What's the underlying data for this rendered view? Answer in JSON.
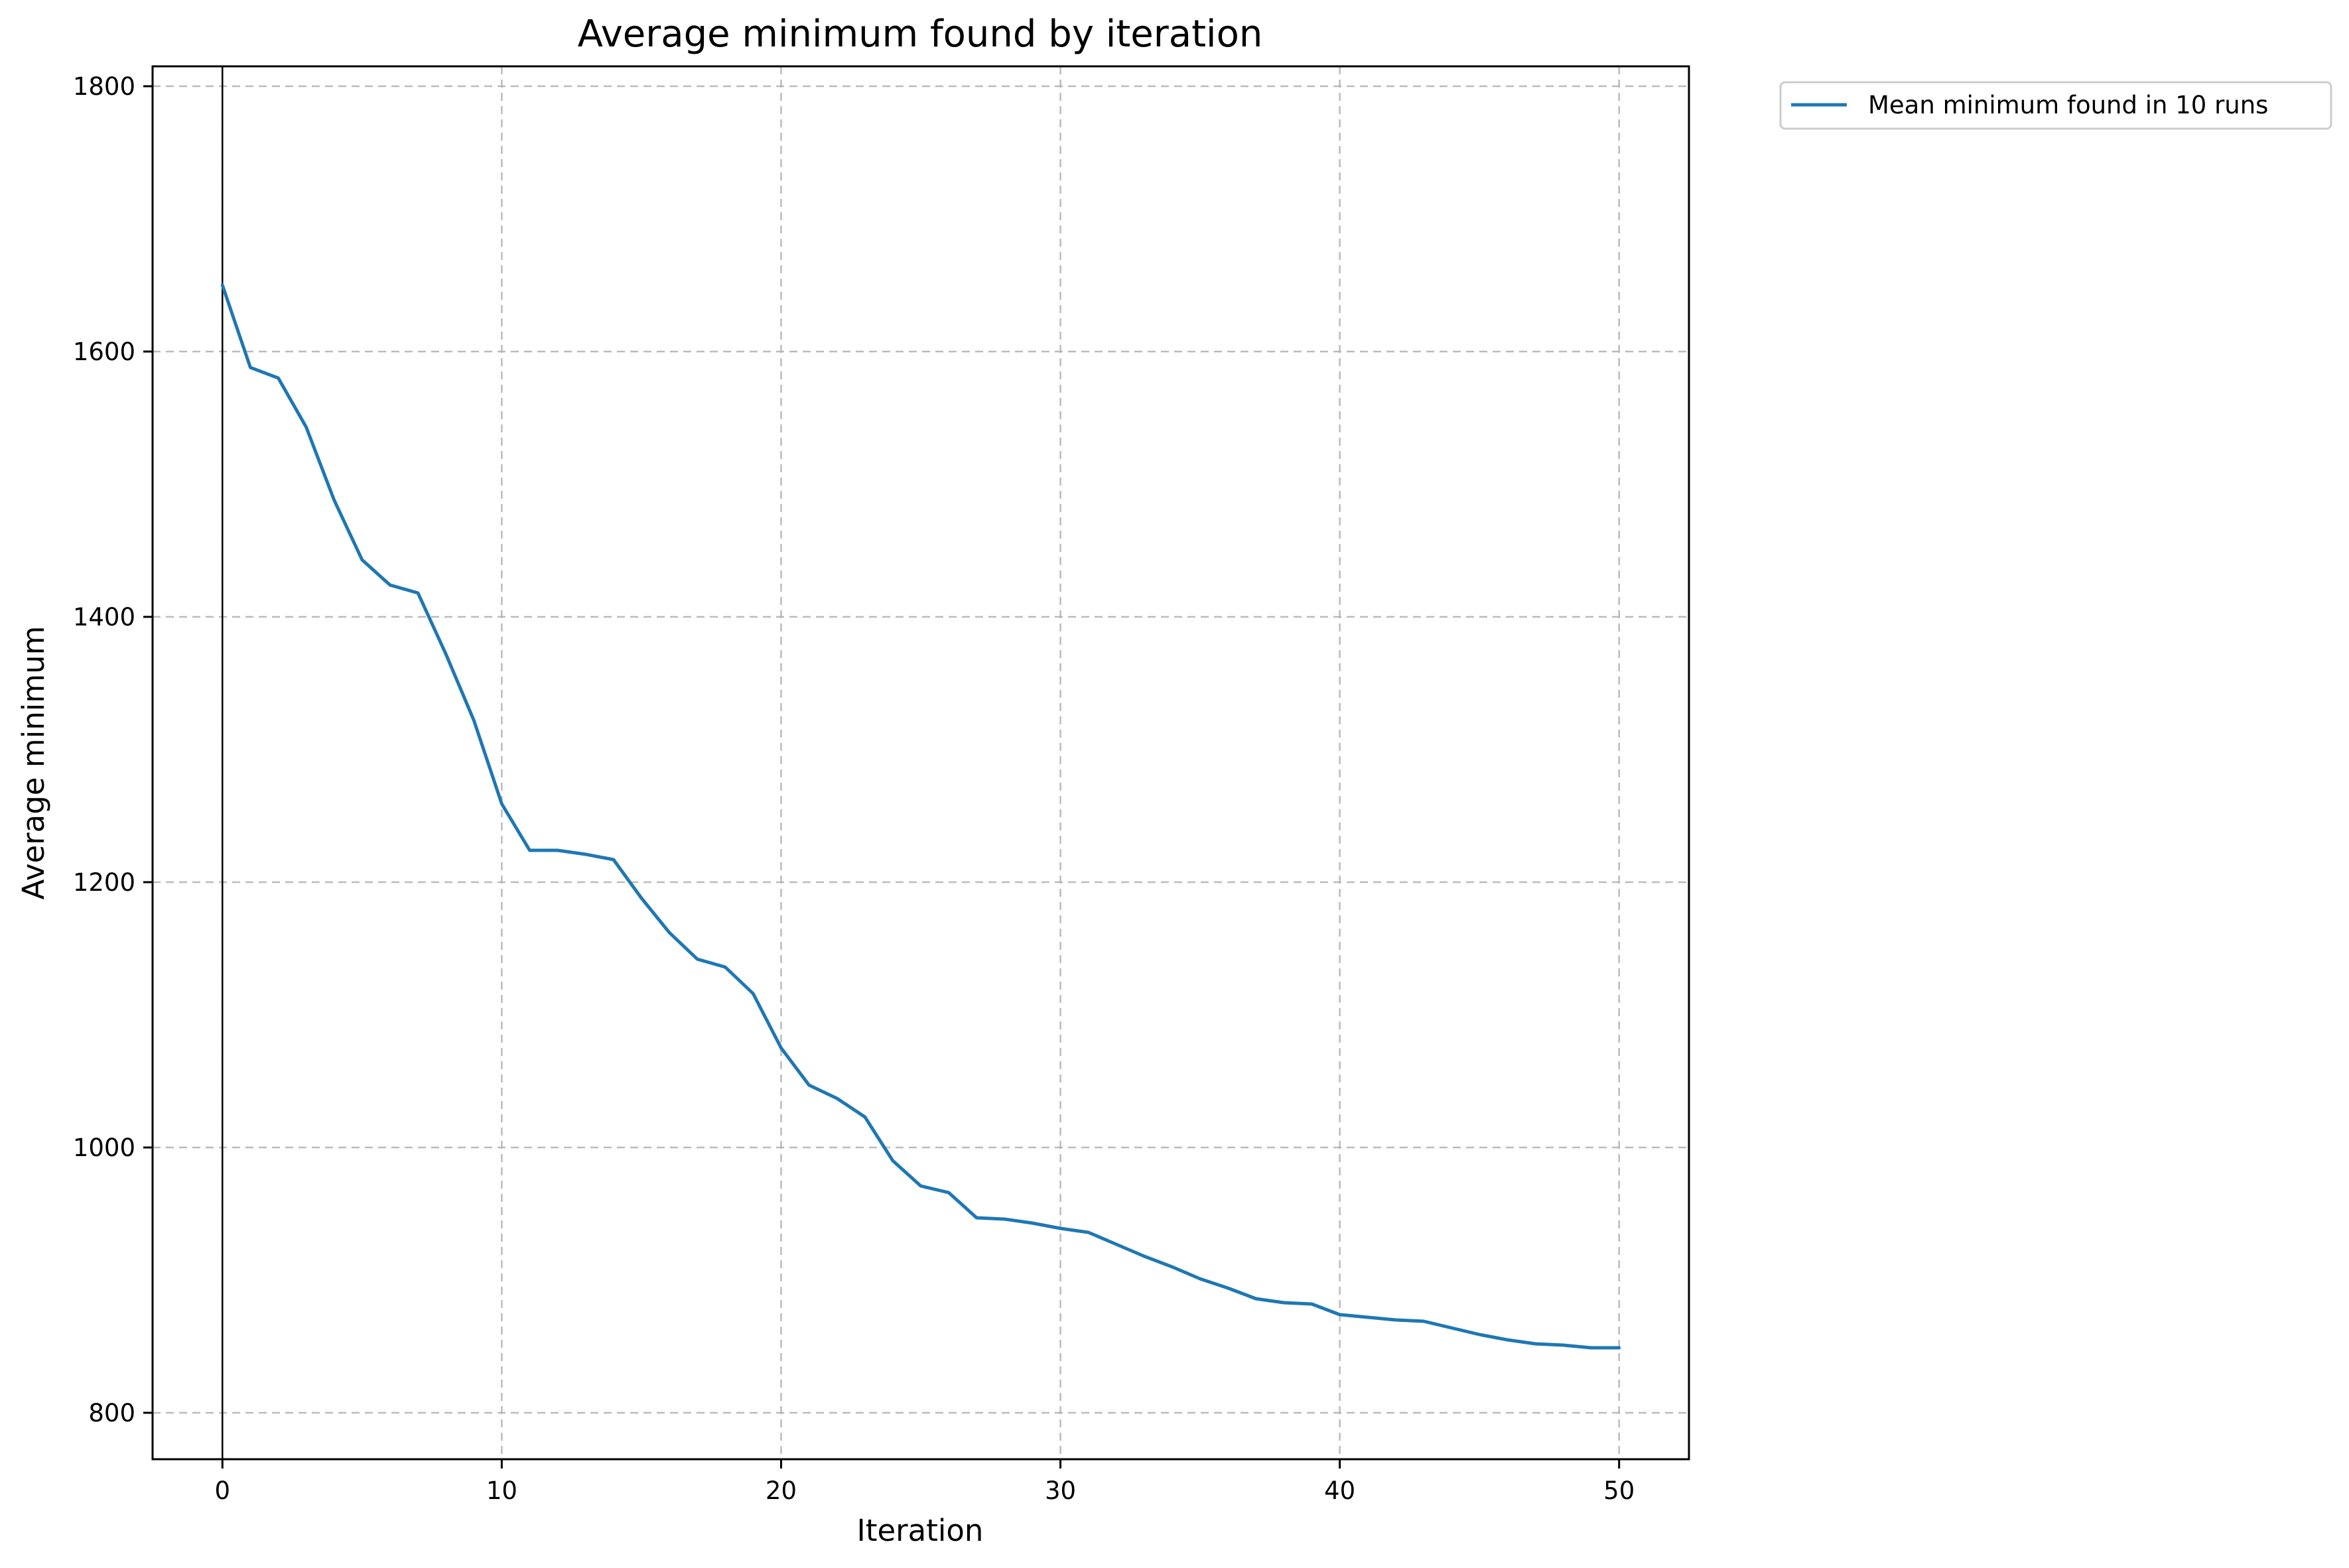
{
  "chart_data": {
    "type": "line",
    "title": "Average minimum found by iteration",
    "xlabel": "Iteration",
    "ylabel": "Average minimum",
    "xlim": [
      -2.5,
      52.5
    ],
    "ylim": [
      765,
      1815
    ],
    "xticks": [
      0,
      10,
      20,
      30,
      40,
      50
    ],
    "yticks": [
      800,
      1000,
      1200,
      1400,
      1600,
      1800
    ],
    "grid": true,
    "legend_position": "outside-top-right",
    "vertical_reference_line_at_x": 0,
    "series": [
      {
        "name": "Mean minimum found in 10 runs",
        "color": "#1f77b4",
        "x": [
          0,
          1,
          2,
          3,
          4,
          5,
          6,
          7,
          8,
          9,
          10,
          11,
          12,
          13,
          14,
          15,
          16,
          17,
          18,
          19,
          20,
          21,
          22,
          23,
          24,
          25,
          26,
          27,
          28,
          29,
          30,
          31,
          32,
          33,
          34,
          35,
          36,
          37,
          38,
          39,
          40,
          41,
          42,
          43,
          44,
          45,
          46,
          47,
          48,
          49,
          50
        ],
        "values": [
          1650,
          1588,
          1580,
          1543,
          1488,
          1443,
          1424,
          1418,
          1372,
          1322,
          1259,
          1224,
          1224,
          1221,
          1217,
          1188,
          1162,
          1142,
          1136,
          1116,
          1075,
          1047,
          1037,
          1023,
          990,
          971,
          966,
          947,
          946,
          943,
          939,
          936,
          927,
          918,
          910,
          901,
          894,
          886,
          883,
          882,
          874,
          872,
          870,
          869,
          864,
          859,
          855,
          852,
          851,
          849,
          849
        ]
      }
    ]
  }
}
